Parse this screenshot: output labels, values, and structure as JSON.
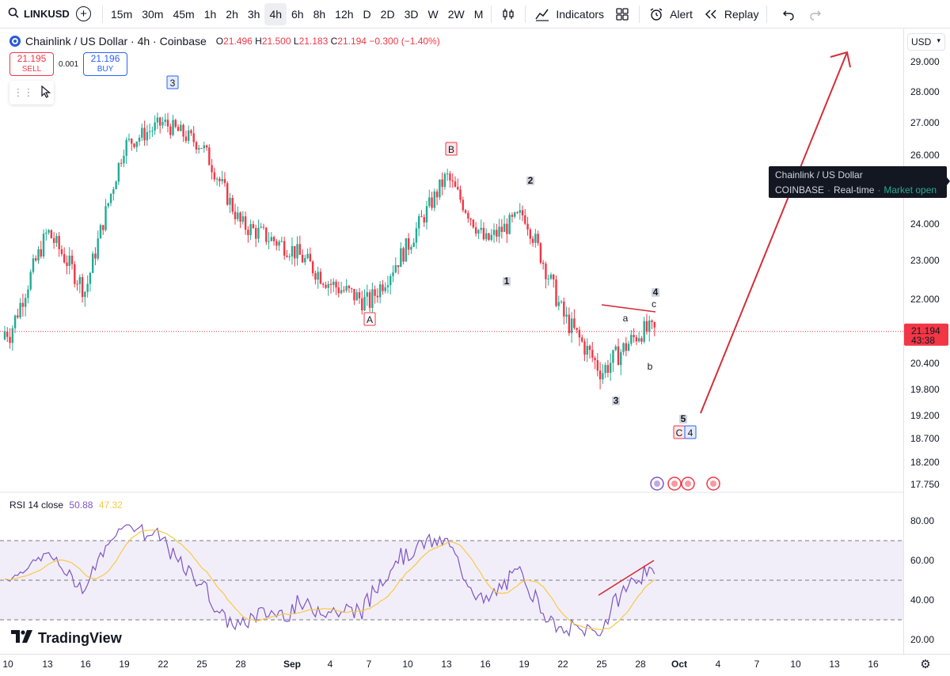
{
  "toolbar": {
    "symbol": "LINKUSD",
    "intervals": [
      "15m",
      "30m",
      "45m",
      "1h",
      "2h",
      "3h",
      "4h",
      "6h",
      "8h",
      "12h",
      "D",
      "2D",
      "3D",
      "W",
      "2W",
      "M"
    ],
    "active_interval": "4h",
    "indicators_label": "Indicators",
    "alert_label": "Alert",
    "replay_label": "Replay"
  },
  "header": {
    "title": "Chainlink / US Dollar · 4h · Coinbase",
    "open_label": "O",
    "open": "21.496",
    "high_label": "H",
    "high": "21.500",
    "low_label": "L",
    "low": "21.183",
    "close_label": "C",
    "close": "21.194",
    "change": "−0.300 (−1.40%)"
  },
  "trade": {
    "sell_price": "21.195",
    "sell_label": "SELL",
    "spread": "0.001",
    "buy_price": "21.196",
    "buy_label": "BUY"
  },
  "price_axis": {
    "currency": "USD",
    "ticks": [
      "29.000",
      "28.000",
      "27.000",
      "26.000",
      "24.000",
      "23.000",
      "22.000",
      "20.400",
      "19.800",
      "19.200",
      "18.700",
      "18.200",
      "17.750"
    ],
    "last_price": "21.194",
    "countdown": "43:38"
  },
  "tooltip": {
    "name": "Chainlink / US Dollar",
    "exchange": "COINBASE",
    "feed": "Real-time",
    "status": "Market open"
  },
  "rsi": {
    "label": "RSI 14 close",
    "value": "50.88",
    "ma_value": "47.32",
    "ticks": [
      "80.00",
      "60.00",
      "40.00",
      "20.00"
    ]
  },
  "time_axis": {
    "labels": [
      "10",
      "13",
      "16",
      "19",
      "22",
      "25",
      "28",
      "Sep",
      "4",
      "7",
      "10",
      "13",
      "16",
      "19",
      "22",
      "25",
      "28",
      "Oct",
      "4",
      "7",
      "10",
      "13",
      "16"
    ]
  },
  "wave_labels": {
    "major": [
      "3",
      "B",
      "A",
      "C",
      "4"
    ],
    "minor": [
      "2",
      "1",
      "3",
      "4",
      "c",
      "a",
      "b",
      "5"
    ]
  },
  "watermark": "TradingView",
  "colors": {
    "up": "#22ab94",
    "down": "#f23645",
    "rsi": "#7e57c2",
    "rsi_ma": "#f7c948",
    "rsi_band": "#7e57c2",
    "drawing": "#d32f3a"
  },
  "chart_data": {
    "type": "candlestick",
    "title": "Chainlink / US Dollar · 4h · Coinbase",
    "x": [
      "Aug 10",
      "Aug 13",
      "Aug 16",
      "Aug 19",
      "Aug 22",
      "Aug 25",
      "Aug 28",
      "Sep 1",
      "Sep 4",
      "Sep 7",
      "Sep 10",
      "Sep 13",
      "Sep 16",
      "Sep 19",
      "Sep 22",
      "Sep 25",
      "Sep 28"
    ],
    "series": [
      {
        "values": [
          21.0,
          23.8,
          22.2,
          26.3,
          27.0,
          26.3,
          24.0,
          23.3,
          22.4,
          21.9,
          23.4,
          25.4,
          23.5,
          24.3,
          21.6,
          20.2,
          21.2
        ]
      }
    ],
    "ylim": [
      17.75,
      29.0
    ],
    "last_price": 21.194,
    "annotations": [
      "3",
      "B",
      "A",
      "C",
      "4",
      "1",
      "2",
      "3",
      "4",
      "5",
      "a",
      "b",
      "c"
    ]
  }
}
